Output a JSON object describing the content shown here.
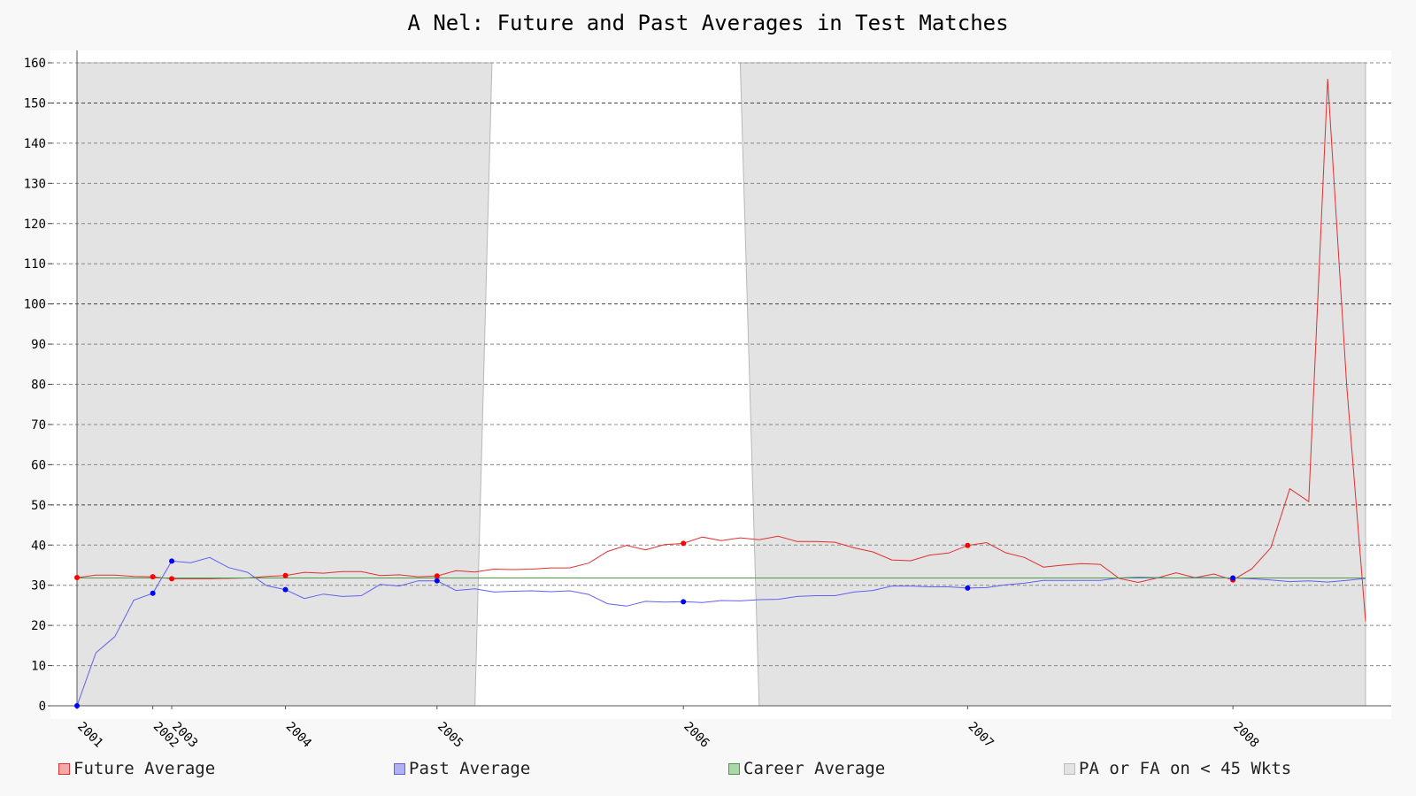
{
  "chart_data": {
    "type": "line",
    "title": "A Nel: Future and Past Averages in Test Matches",
    "ylim": [
      0,
      160
    ],
    "yticks": [
      0,
      10,
      20,
      30,
      40,
      50,
      60,
      70,
      80,
      90,
      100,
      110,
      120,
      130,
      140,
      150,
      160
    ],
    "xticks": [
      {
        "label": "2001",
        "x": 0
      },
      {
        "label": "2002",
        "x": 4
      },
      {
        "label": "2003",
        "x": 5
      },
      {
        "label": "2004",
        "x": 11
      },
      {
        "label": "2005",
        "x": 19
      },
      {
        "label": "2006",
        "x": 32
      },
      {
        "label": "2007",
        "x": 47
      },
      {
        "label": "2008",
        "x": 61
      }
    ],
    "xlim": [
      0,
      68
    ],
    "grid": true,
    "series": [
      {
        "name": "Future Average",
        "color": "#e03030",
        "marker_color": "#ff0000",
        "values": [
          31.9,
          32.5,
          32.5,
          32.2,
          32.1,
          31.6,
          31.6,
          31.6,
          31.7,
          31.8,
          32.2,
          32.4,
          33.2,
          33.0,
          33.4,
          33.4,
          32.4,
          32.6,
          32.1,
          32.3,
          33.6,
          33.3,
          34.0,
          33.9,
          34.0,
          34.3,
          34.3,
          35.5,
          38.4,
          39.9,
          38.8,
          40.1,
          40.4,
          42.0,
          41.1,
          41.8,
          41.3,
          42.2,
          40.9,
          40.9,
          40.7,
          39.3,
          38.3,
          36.3,
          36.1,
          37.5,
          38.0,
          39.9,
          40.6,
          38.1,
          36.9,
          34.5,
          35.0,
          35.4,
          35.2,
          31.7,
          30.7,
          31.8,
          33.1,
          31.9,
          32.8,
          31.3,
          34.1,
          39.3,
          54.0,
          50.8,
          156.0,
          80.0,
          21.0
        ],
        "marker_indices": [
          0,
          4,
          5,
          11,
          19,
          32,
          47,
          61
        ]
      },
      {
        "name": "Past Average",
        "color": "#6060f0",
        "marker_color": "#0000ff",
        "values": [
          0,
          13.2,
          17.2,
          26.3,
          28.0,
          36.0,
          35.6,
          36.9,
          34.4,
          33.2,
          29.9,
          28.9,
          26.7,
          27.8,
          27.2,
          27.4,
          30.2,
          29.8,
          31.1,
          31.1,
          28.7,
          29.1,
          28.3,
          28.5,
          28.6,
          28.4,
          28.6,
          27.7,
          25.4,
          24.8,
          26.0,
          25.8,
          25.9,
          25.7,
          26.2,
          26.1,
          26.4,
          26.5,
          27.2,
          27.4,
          27.4,
          28.3,
          28.7,
          29.8,
          29.8,
          29.6,
          29.6,
          29.3,
          29.4,
          30.1,
          30.5,
          31.2,
          31.2,
          31.2,
          31.2,
          31.8,
          32.0,
          31.9,
          31.8,
          31.9,
          31.9,
          31.8,
          31.6,
          31.3,
          30.9,
          31.1,
          30.8,
          31.2,
          31.7
        ],
        "marker_indices": [
          0,
          4,
          5,
          11,
          19,
          32,
          47,
          61
        ]
      },
      {
        "name": "Career Average",
        "color": "#4a9a4a",
        "values": [
          31.8,
          31.8
        ]
      }
    ],
    "shaded_region": {
      "name": "PA or FA on < 45 Wkts",
      "color": "#e3e3e3",
      "top": 160,
      "unshaded_top_x": [
        21.9,
        35.0
      ],
      "unshaded_bottom_x": [
        21.0,
        36.0
      ]
    },
    "legend": [
      {
        "label": "Future Average",
        "fill": "#f4a9a9",
        "border": "#e03030"
      },
      {
        "label": "Past Average",
        "fill": "#b0b0f4",
        "border": "#6060f0"
      },
      {
        "label": "Career Average",
        "fill": "#a9d9a9",
        "border": "#4a9a4a"
      },
      {
        "label": "PA or FA on < 45 Wkts",
        "fill": "#e3e3e3",
        "border": "#bbbbbb"
      }
    ],
    "legend_position": "bottom"
  }
}
